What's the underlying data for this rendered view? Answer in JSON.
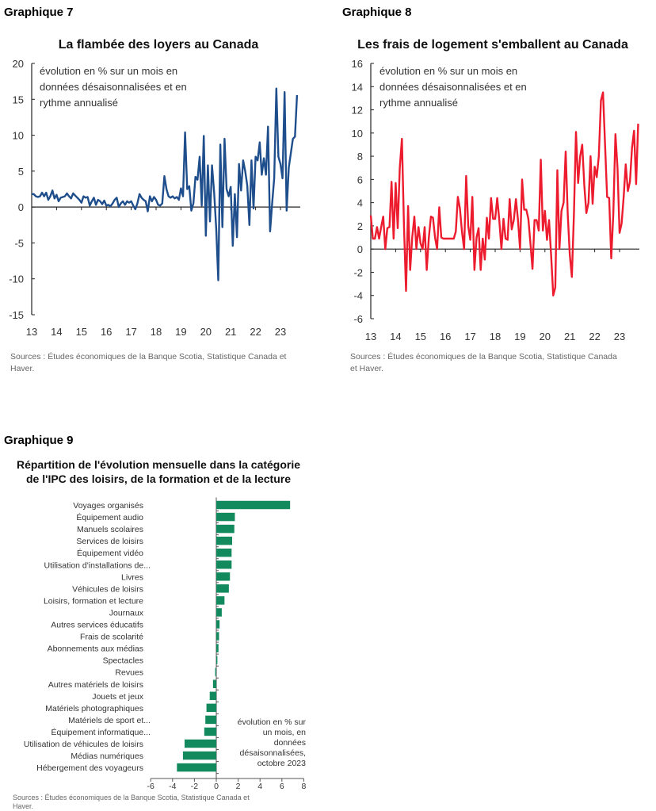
{
  "chart_data": [
    {
      "type": "line",
      "header": "Graphique 7",
      "title": "La flambée des loyers au Canada",
      "annotation": [
        "évolution en % sur un mois en",
        "données désaisonnalisées et en",
        "rythme annualisé"
      ],
      "source": [
        "Sources : Études économiques de la Banque Scotia, Statistique Canada et",
        "Haver."
      ],
      "color": "#1f4e8c",
      "ylim": [
        -15,
        20
      ],
      "yticks": [
        "20",
        "15",
        "10",
        "5",
        "0",
        "-5",
        "-10",
        "-15"
      ],
      "xticks": [
        "13",
        "14",
        "15",
        "16",
        "17",
        "18",
        "19",
        "20",
        "21",
        "22",
        "23"
      ],
      "x_start": "2013-01",
      "frequency": "monthly",
      "values": [
        1.8,
        1.8,
        1.5,
        1.4,
        1.5,
        2.0,
        1.5,
        2.0,
        1.0,
        1.5,
        2.3,
        1.2,
        1.7,
        0.8,
        1.3,
        1.4,
        1.5,
        1.9,
        1.5,
        1.2,
        1.9,
        1.6,
        1.3,
        1.0,
        0.6,
        1.5,
        1.3,
        1.4,
        0.2,
        0.8,
        1.3,
        0.3,
        1.0,
        0.8,
        0.4,
        0.9,
        0.2,
        0.3,
        0.1,
        0.5,
        1.0,
        1.3,
        0.0,
        0.5,
        0.8,
        0.3,
        0.8,
        0.6,
        0.8,
        0.2,
        -0.3,
        0.5,
        1.8,
        1.3,
        1.0,
        0.8,
        -0.6,
        1.5,
        0.8,
        1.4,
        1.0,
        0.3,
        0.2,
        0.5,
        4.3,
        2.5,
        1.5,
        1.3,
        1.5,
        1.2,
        1.4,
        1.0,
        2.6,
        1.5,
        10.4,
        2.5,
        2.9,
        -0.5,
        0.5,
        4.2,
        3.8,
        7.0,
        0.2,
        9.9,
        -4.0,
        5.8,
        -2.0,
        5.8,
        2.0,
        -3.0,
        -10.2,
        8.7,
        -2.8,
        9.5,
        2.5,
        1.5,
        2.8,
        -5.4,
        1.8,
        -4.2,
        6.0,
        2.3,
        6.5,
        5.0,
        3.0,
        -2.5,
        6.5,
        -0.2,
        7.0,
        6.5,
        9.0,
        4.5,
        6.8,
        4.5,
        11.2,
        -3.4,
        0.5,
        4.0,
        16.5,
        7.0,
        6.0,
        4.0,
        16.0,
        -0.5,
        5.5,
        7.5,
        9.5,
        9.8,
        15.6
      ]
    },
    {
      "type": "line",
      "header": "Graphique 8",
      "title": "Les frais de logement s'emballent au Canada",
      "annotation": [
        "évolution en % sur un mois en",
        "données désaisonnalisées et en",
        "rythme annualisé"
      ],
      "source": [
        "Sources : Études économiques de la Banque Scotia, Statistique Canada",
        "et Haver."
      ],
      "color": "#ec1c2e",
      "ylim": [
        -6,
        16
      ],
      "yticks": [
        "16",
        "14",
        "12",
        "10",
        "8",
        "6",
        "4",
        "2",
        "0",
        "-2",
        "-4",
        "-6"
      ],
      "xticks": [
        "13",
        "14",
        "15",
        "16",
        "17",
        "18",
        "19",
        "20",
        "21",
        "22",
        "23"
      ],
      "x_start": "2013-01",
      "frequency": "monthly",
      "values": [
        2.9,
        0.9,
        0.9,
        1.9,
        0.9,
        1.9,
        2.8,
        0.0,
        1.8,
        1.9,
        5.8,
        0.9,
        5.7,
        1.8,
        7.0,
        9.5,
        2.0,
        -3.6,
        3.7,
        -1.8,
        1.0,
        2.8,
        0.0,
        1.9,
        0.5,
        0.0,
        1.9,
        -1.8,
        1.0,
        2.8,
        2.7,
        1.0,
        0.0,
        3.6,
        1.0,
        0.9,
        0.9,
        0.9,
        0.9,
        0.9,
        0.9,
        1.5,
        4.5,
        3.5,
        1.5,
        0.0,
        6.3,
        2.0,
        0.8,
        4.5,
        -1.8,
        1.0,
        1.8,
        -1.8,
        0.9,
        -0.9,
        2.7,
        0.9,
        4.4,
        2.6,
        2.6,
        4.4,
        2.5,
        0.0,
        2.6,
        0.9,
        0.8,
        4.3,
        1.7,
        2.5,
        4.3,
        2.5,
        0.0,
        6.0,
        3.4,
        3.4,
        2.6,
        0.5,
        -1.7,
        2.5,
        2.5,
        1.6,
        7.7,
        1.6,
        3.3,
        0.8,
        2.5,
        -0.5,
        -4.0,
        -3.3,
        6.8,
        0.0,
        3.3,
        4.0,
        8.4,
        3.0,
        -0.5,
        -2.4,
        3.0,
        10.1,
        5.7,
        8.0,
        9.0,
        5.5,
        3.1,
        4.0,
        8.0,
        3.9,
        7.1,
        6.2,
        8.0,
        12.8,
        13.5,
        9.0,
        4.5,
        4.4,
        -0.8,
        3.0,
        9.9,
        7.0,
        1.4,
        2.2,
        4.5,
        7.3,
        5.0,
        5.8,
        8.7,
        10.2,
        5.6,
        10.8
      ]
    },
    {
      "type": "bar",
      "orientation": "horizontal",
      "header": "Graphique 9",
      "title": [
        "Répartition de l'évolution mensuelle dans la catégorie",
        "de l'IPC des loisirs, de la formation et de la lecture"
      ],
      "annotation": [
        "évolution en % sur",
        "un mois, en",
        "données",
        "désaisonnalisées,",
        "octobre 2023"
      ],
      "source": [
        "Sources : Études économiques de la Banque Scotia, Statistique Canada et",
        "Haver."
      ],
      "color": "#138a5e",
      "xlim": [
        -6,
        8
      ],
      "xticks": [
        "-6",
        "-4",
        "-2",
        "0",
        "2",
        "4",
        "6",
        "8"
      ],
      "categories": [
        "Voyages organisés",
        "Équipement audio",
        "Manuels scolaires",
        "Services de loisirs",
        "Équipement vidéo",
        "Utilisation d'installations de...",
        "Livres",
        "Véhicules de loisirs",
        "Loisirs, formation et lecture",
        "Journaux",
        "Autres services éducatifs",
        "Frais de scolarité",
        "Abonnements aux médias",
        "Spectacles",
        "Revues",
        "Autres matériels de loisirs",
        "Jouets et jeux",
        "Matériels photographiques",
        "Matériels de sport et...",
        "Équipement informatique...",
        "Utilisation de véhicules de loisirs",
        "Médias numériques",
        "Hébergement des voyageurs"
      ],
      "values": [
        6.75,
        1.7,
        1.65,
        1.45,
        1.4,
        1.4,
        1.25,
        1.15,
        0.75,
        0.5,
        0.3,
        0.25,
        0.2,
        0.1,
        -0.1,
        -0.3,
        -0.6,
        -0.9,
        -1.0,
        -1.1,
        -2.9,
        -3.05,
        -3.6
      ]
    }
  ]
}
